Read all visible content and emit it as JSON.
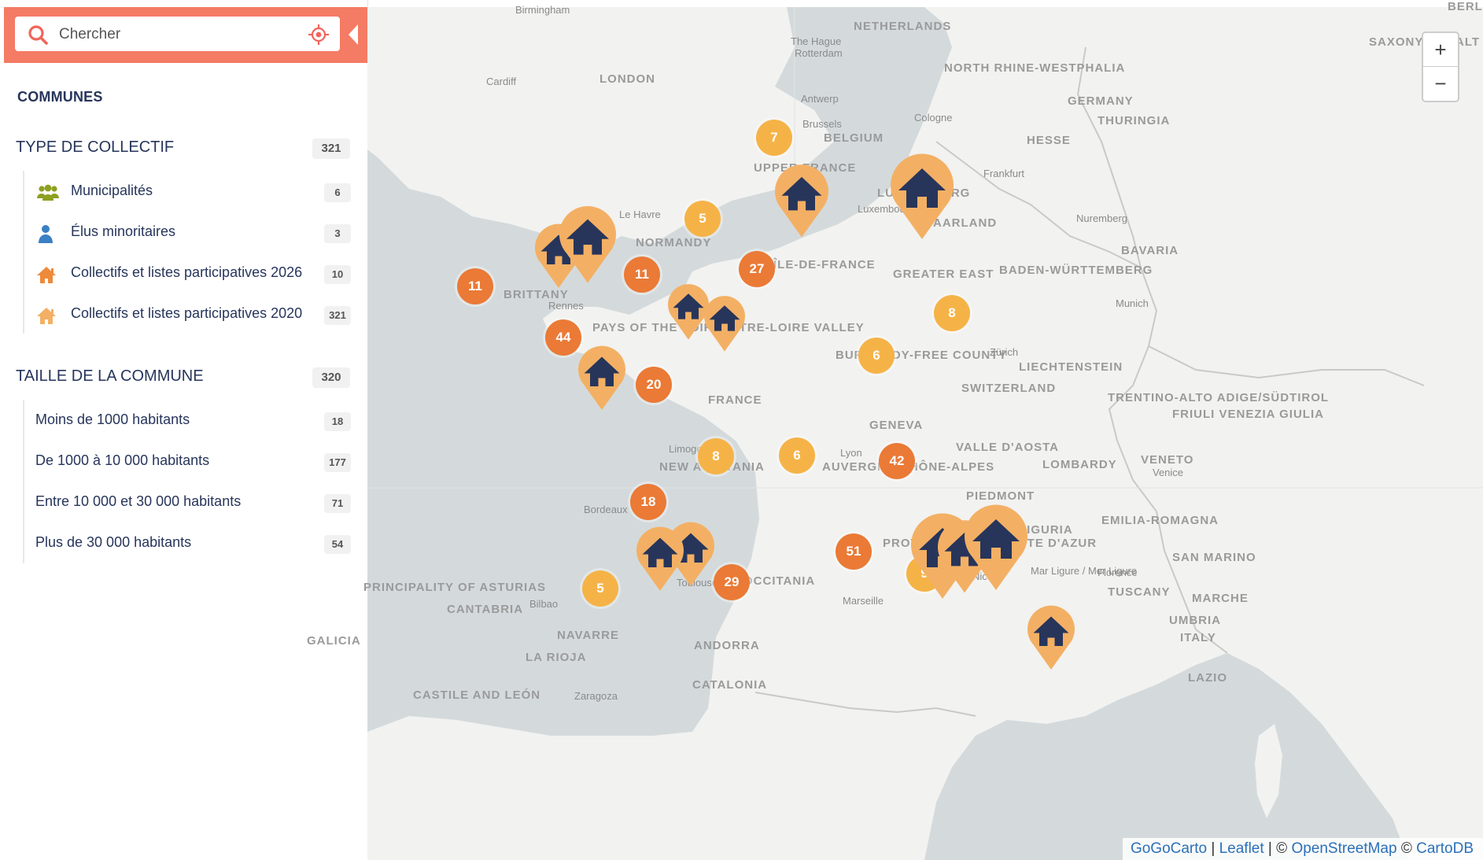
{
  "search": {
    "placeholder": "Chercher"
  },
  "sidebar": {
    "section_title": "COMMUNES",
    "groups": [
      {
        "label": "TYPE DE COLLECTIF",
        "count": "321",
        "items": [
          {
            "label": "Municipalités",
            "count": "6",
            "icon": "group-people-icon",
            "color": "#8ea020"
          },
          {
            "label": "Élus minoritaires",
            "count": "3",
            "icon": "person-icon",
            "color": "#3b7fc4"
          },
          {
            "label": "Collectifs et listes participatives 2026",
            "count": "10",
            "icon": "house-icon",
            "color": "#ee8a3a"
          },
          {
            "label": "Collectifs et listes participatives 2020",
            "count": "321",
            "icon": "house-icon",
            "color": "#f3b064"
          }
        ]
      },
      {
        "label": "TAILLE DE LA COMMUNE",
        "count": "320",
        "items": [
          {
            "label": "Moins de 1000 habitants",
            "count": "18"
          },
          {
            "label": "De 1000 à 10 000 habitants",
            "count": "177"
          },
          {
            "label": "Entre 10 000 et 30 000 habitants",
            "count": "71"
          },
          {
            "label": "Plus de 30 000 habitants",
            "count": "54"
          }
        ]
      }
    ]
  },
  "map": {
    "zoom_in": "+",
    "zoom_out": "−",
    "colors": {
      "land": "#f2f2f0",
      "sea": "#d4dadc",
      "border": "#c9c9c9",
      "cluster_light": "#f5b347",
      "cluster_dark": "#ea7a36",
      "pin_light": "#f3b064",
      "pin_dark": "#27355b"
    },
    "place_labels": [
      "Birmingham",
      "NETHERLANDS",
      "The Hague",
      "Rotterdam",
      "BERLIN",
      "SAXONY-ANHALT",
      "Cardiff",
      "LONDON",
      "Antwerp",
      "NORTH RHINE-WESTPHALIA",
      "GERMANY",
      "THURINGIA",
      "Brussels",
      "BELGIUM",
      "Cologne",
      "HESSE",
      "UPPER FRANCE",
      "Frankfurt",
      "LUXEMBOURG",
      "Luxembourg",
      "Le Havre",
      "NORMANDY",
      "SAARLAND",
      "Nuremberg",
      "BAVARIA",
      "ÎLE-DE-FRANCE",
      "GREATER EAST",
      "BADEN-WÜRTTEMBERG",
      "BRITTANY",
      "Rennes",
      "Munich",
      "PAYS OF THE LOIRE",
      "CENTRE-LOIRE VALLEY",
      "BURGUNDY-FREE COUNTY",
      "Zürich",
      "LIECHTENSTEIN",
      "SWITZERLAND",
      "FRANCE",
      "TRENTINO-ALTO ADIGE/SÜDTIROL",
      "FRIULI VENEZIA GIULIA",
      "GENEVA",
      "Limoges",
      "Lyon",
      "AUVERGNE-RHÔNE-ALPES",
      "VALLE D'AOSTA",
      "LOMBARDY",
      "VENETO",
      "Venice",
      "NEW AQUITANIA",
      "PIEDMONT",
      "Bordeaux",
      "EMILIA-ROMAGNA",
      "PROVENCE-ALPES-CÔTE D'AZUR",
      "LIGURIA",
      "SAN MARINO",
      "Florence",
      "Nice",
      "Toulouse",
      "OCCITANIA",
      "Mar Ligure / Mer Ligure",
      "TUSCANY",
      "PRINCIPALITY OF ASTURIAS",
      "CANTABRIA",
      "Bilbao",
      "Marseille",
      "MARCHE",
      "UMBRIA",
      "GALICIA",
      "NAVARRE",
      "ANDORRA",
      "ITALY",
      "LA RIOJA",
      "LAZIO",
      "CATALONIA",
      "CASTILE AND LEÓN",
      "Zaragoza"
    ],
    "clusters": [
      "7",
      "5",
      "11",
      "27",
      "11",
      "8",
      "44",
      "6",
      "20",
      "8",
      "6",
      "42",
      "18",
      "51",
      "9",
      "29",
      "5"
    ]
  },
  "attribution": {
    "gogocarto": "GoGoCarto",
    "sep1": " | ",
    "leaflet": "Leaflet",
    "sep2": " | © ",
    "osm": "OpenStreetMap",
    "sep3": " © ",
    "carto": "CartoDB"
  }
}
